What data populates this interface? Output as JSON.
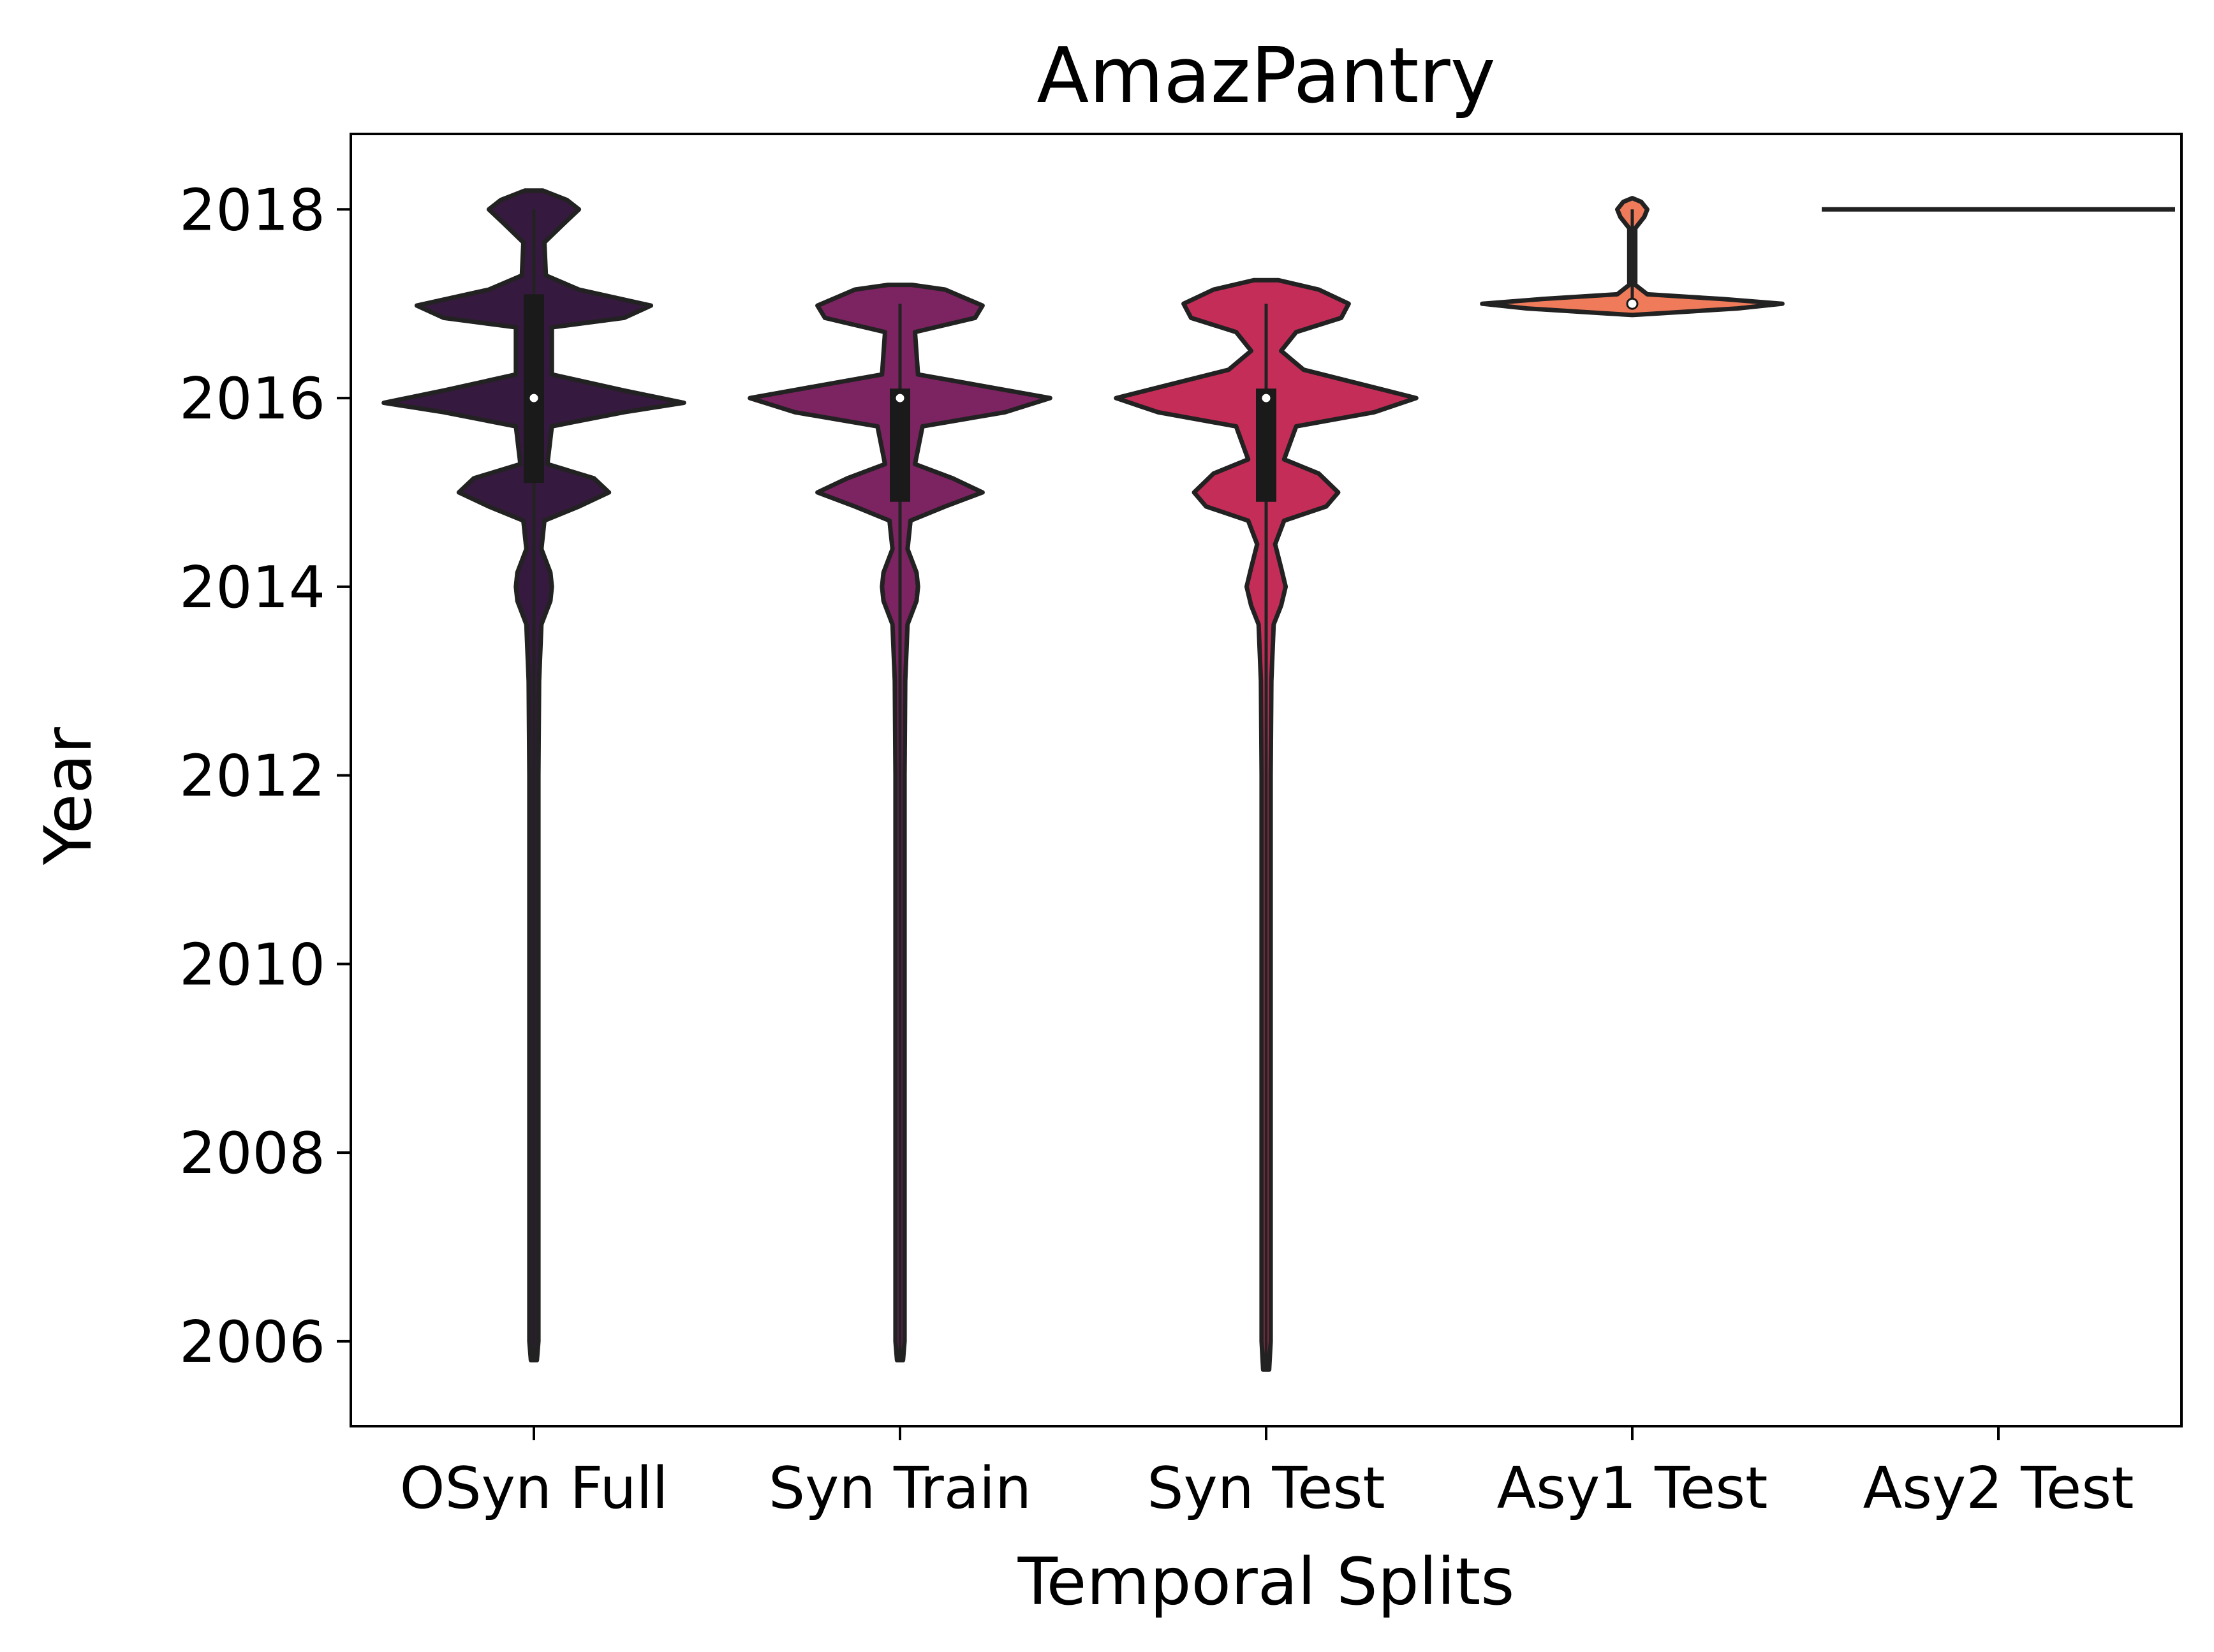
{
  "chart_data": {
    "type": "violin",
    "title": "AmazPantry",
    "xlabel": "Temporal Splits",
    "ylabel": "Year",
    "ylim": [
      2005.1,
      2018.8
    ],
    "yticks": [
      2006,
      2008,
      2010,
      2012,
      2014,
      2016,
      2018
    ],
    "categories": [
      "OSyn Full",
      "Syn Train",
      "Syn Test",
      "Asy1 Test",
      "Asy2 Test"
    ],
    "grid": false,
    "colors": [
      "#36193e",
      "#7c2361",
      "#c42d58",
      "#f07b5a",
      "#f7bf9a"
    ],
    "series": [
      {
        "name": "OSyn Full",
        "range": [
          2005.8,
          2018.0
        ],
        "quartiles": [
          2015.1,
          2016.0,
          2017.1
        ],
        "profile": [
          [
            2005.8,
            0.02
          ],
          [
            2006,
            0.03
          ],
          [
            2010,
            0.03
          ],
          [
            2012,
            0.03
          ],
          [
            2013.0,
            0.035
          ],
          [
            2013.6,
            0.05
          ],
          [
            2013.85,
            0.11
          ],
          [
            2014.0,
            0.12
          ],
          [
            2014.15,
            0.11
          ],
          [
            2014.4,
            0.05
          ],
          [
            2014.7,
            0.07
          ],
          [
            2014.85,
            0.3
          ],
          [
            2015.0,
            0.5
          ],
          [
            2015.15,
            0.4
          ],
          [
            2015.3,
            0.09
          ],
          [
            2015.7,
            0.12
          ],
          [
            2015.85,
            0.6
          ],
          [
            2015.95,
            1.0
          ],
          [
            2016.08,
            0.6
          ],
          [
            2016.25,
            0.12
          ],
          [
            2016.75,
            0.12
          ],
          [
            2016.85,
            0.6
          ],
          [
            2016.98,
            0.78
          ],
          [
            2017.15,
            0.3
          ],
          [
            2017.3,
            0.08
          ],
          [
            2017.65,
            0.07
          ],
          [
            2017.85,
            0.2
          ],
          [
            2018.0,
            0.3
          ],
          [
            2018.1,
            0.22
          ],
          [
            2018.2,
            0.06
          ]
        ]
      },
      {
        "name": "Syn Train",
        "range": [
          2005.8,
          2017.0
        ],
        "quartiles": [
          2014.9,
          2016.0,
          2016.1
        ],
        "profile": [
          [
            2005.8,
            0.02
          ],
          [
            2006,
            0.03
          ],
          [
            2010,
            0.03
          ],
          [
            2012,
            0.03
          ],
          [
            2013.0,
            0.035
          ],
          [
            2013.6,
            0.05
          ],
          [
            2013.85,
            0.11
          ],
          [
            2014.0,
            0.12
          ],
          [
            2014.15,
            0.11
          ],
          [
            2014.4,
            0.05
          ],
          [
            2014.7,
            0.07
          ],
          [
            2014.85,
            0.3
          ],
          [
            2015.0,
            0.55
          ],
          [
            2015.15,
            0.35
          ],
          [
            2015.3,
            0.1
          ],
          [
            2015.7,
            0.15
          ],
          [
            2015.85,
            0.7
          ],
          [
            2016.0,
            1.0
          ],
          [
            2016.1,
            0.65
          ],
          [
            2016.25,
            0.12
          ],
          [
            2016.7,
            0.1
          ],
          [
            2016.85,
            0.5
          ],
          [
            2016.98,
            0.55
          ],
          [
            2017.15,
            0.3
          ],
          [
            2017.2,
            0.08
          ]
        ]
      },
      {
        "name": "Syn Test",
        "range": [
          2005.7,
          2017.0
        ],
        "quartiles": [
          2014.9,
          2016.0,
          2016.1
        ],
        "profile": [
          [
            2005.7,
            0.02
          ],
          [
            2006,
            0.03
          ],
          [
            2010,
            0.03
          ],
          [
            2012,
            0.03
          ],
          [
            2013.0,
            0.035
          ],
          [
            2013.6,
            0.05
          ],
          [
            2013.8,
            0.1
          ],
          [
            2014.0,
            0.13
          ],
          [
            2014.2,
            0.1
          ],
          [
            2014.45,
            0.06
          ],
          [
            2014.7,
            0.12
          ],
          [
            2014.85,
            0.4
          ],
          [
            2015.0,
            0.48
          ],
          [
            2015.2,
            0.35
          ],
          [
            2015.35,
            0.12
          ],
          [
            2015.7,
            0.2
          ],
          [
            2015.85,
            0.72
          ],
          [
            2016.0,
            1.0
          ],
          [
            2016.12,
            0.7
          ],
          [
            2016.3,
            0.25
          ],
          [
            2016.5,
            0.1
          ],
          [
            2016.7,
            0.2
          ],
          [
            2016.85,
            0.5
          ],
          [
            2017.0,
            0.55
          ],
          [
            2017.15,
            0.35
          ],
          [
            2017.25,
            0.08
          ]
        ]
      },
      {
        "name": "Asy1 Test",
        "range": [
          2017.0,
          2018.0
        ],
        "quartiles": [
          2017.0,
          2017.0,
          2017.0
        ],
        "profile": [
          [
            2016.88,
            0.0
          ],
          [
            2016.9,
            0.2
          ],
          [
            2016.95,
            0.7
          ],
          [
            2017.0,
            1.0
          ],
          [
            2017.05,
            0.6
          ],
          [
            2017.1,
            0.1
          ],
          [
            2017.2,
            0.02
          ],
          [
            2017.8,
            0.02
          ],
          [
            2017.92,
            0.08
          ],
          [
            2018.0,
            0.1
          ],
          [
            2018.08,
            0.06
          ],
          [
            2018.12,
            0.0
          ]
        ]
      },
      {
        "name": "Asy2 Test",
        "range": [
          2018.0,
          2018.0
        ],
        "quartiles": [
          2018.0,
          2018.0,
          2018.0
        ],
        "profile": []
      }
    ]
  }
}
